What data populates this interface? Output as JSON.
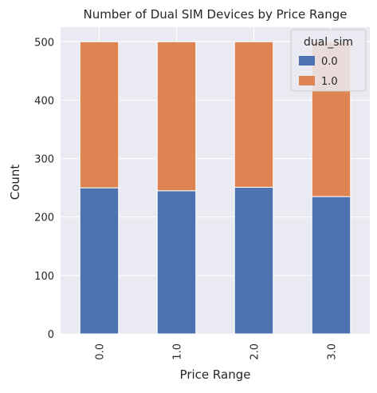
{
  "chart_data": {
    "type": "bar",
    "stacked": true,
    "title": "Number of Dual SIM Devices by Price Range",
    "xlabel": "Price Range",
    "ylabel": "Count",
    "categories": [
      "0.0",
      "1.0",
      "2.0",
      "3.0"
    ],
    "series": [
      {
        "name": "0.0",
        "values": [
          250,
          245,
          251,
          235
        ],
        "color": "#4c72b0"
      },
      {
        "name": "1.0",
        "values": [
          250,
          255,
          249,
          265
        ],
        "color": "#dd8452"
      }
    ],
    "ylim": [
      0,
      525
    ],
    "yticks": [
      0,
      100,
      200,
      300,
      400,
      500
    ],
    "grid": true,
    "legend": {
      "title": "dual_sim",
      "placement": "top-right"
    },
    "colors": {
      "plot_background": "#eaeaf2",
      "grid": "#ffffff"
    }
  }
}
